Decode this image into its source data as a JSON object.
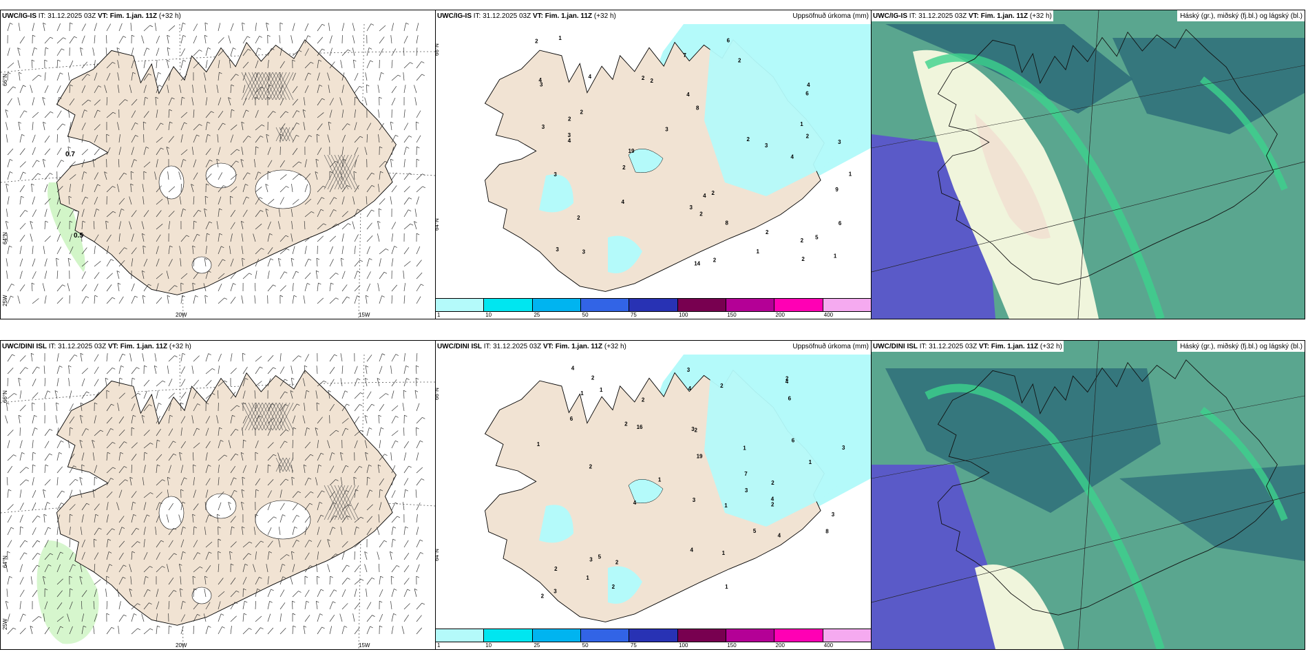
{
  "panels_row1": {
    "wind": {
      "model": "UWC/IG-IS",
      "it_label": "IT:",
      "it_value": "31.12.2025 03Z",
      "vt_label": "VT:",
      "vt_value": "Fim. 1.jan. 11Z",
      "lead": "(+32 h)"
    },
    "precip": {
      "model": "UWC/IG-IS",
      "it_label": "IT:",
      "it_value": "31.12.2025 03Z",
      "vt_label": "VT:",
      "vt_value": "Fim. 1.jan. 11Z",
      "lead": "(+32 h)",
      "title_right": "Uppsöfnuð úrkoma (mm)"
    },
    "cloud": {
      "model": "UWC/IG-IS",
      "it_label": "IT:",
      "it_value": "31.12.2025 03Z",
      "vt_label": "VT:",
      "vt_value": "Fim. 1.jan. 11Z",
      "lead": "(+32 h)",
      "title_right": "Háský (gr.), miðský (fj.bl.) og lágský (bl.)"
    }
  },
  "panels_row2": {
    "wind": {
      "model": "UWC/DINI ISL",
      "it_label": "IT:",
      "it_value": "31.12.2025 03Z",
      "vt_label": "VT:",
      "vt_value": "Fim. 1.jan. 11Z",
      "lead": "(+32 h)"
    },
    "precip": {
      "model": "UWC/DINI ISL",
      "it_label": "IT:",
      "it_value": "31.12.2025 03Z",
      "vt_label": "VT:",
      "vt_value": "Fim. 1.jan. 11Z",
      "lead": "(+32 h)",
      "title_right": "Uppsöfnuð úrkoma (mm)"
    },
    "cloud": {
      "model": "UWC/DINI ISL",
      "it_label": "IT:",
      "it_value": "31.12.2025 03Z",
      "vt_label": "VT:",
      "vt_value": "Fim. 1.jan. 11Z",
      "lead": "(+32 h)",
      "title_right": "Háský (gr.), miðský (fj.bl.) og lágský (bl.)"
    }
  },
  "map_labels": {
    "lat_66": "66°N",
    "lat_64": "64°N",
    "lon_25": "25W",
    "lon_20": "20W",
    "lon_15": "15W"
  },
  "wind_annotations": {
    "row1_a": "0.7",
    "row1_b": "0.5"
  },
  "colorbar": {
    "colors": [
      "#b4fafa",
      "#00e6f0",
      "#00b4f0",
      "#3264e6",
      "#2832b4",
      "#780050",
      "#b40096",
      "#ff00b4",
      "#f5aaf0"
    ],
    "ticks": [
      "1",
      "10",
      "25",
      "50",
      "75",
      "100",
      "150",
      "200",
      "400"
    ]
  },
  "precip_values_row1": [
    "3",
    "2",
    "2",
    "2",
    "2",
    "2",
    "2",
    "4",
    "3",
    "4",
    "8",
    "9",
    "2",
    "7",
    "19",
    "14",
    "2",
    "2",
    "3",
    "2",
    "6",
    "4",
    "3",
    "1",
    "2",
    "3",
    "4",
    "6",
    "2",
    "5",
    "2",
    "4",
    "8",
    "2",
    "3",
    "4",
    "6",
    "1",
    "2",
    "3",
    "4",
    "1",
    "1",
    "3",
    "2",
    "4",
    "3",
    "3",
    "1"
  ],
  "precip_values_row2": [
    "1",
    "2",
    "2",
    "3",
    "2",
    "2",
    "4",
    "3",
    "4",
    "3",
    "5",
    "6",
    "7",
    "19",
    "16",
    "2",
    "4",
    "1",
    "2",
    "2",
    "2",
    "4",
    "8",
    "3",
    "4",
    "3",
    "1",
    "5",
    "6",
    "4",
    "2",
    "2",
    "1",
    "2",
    "6",
    "3",
    "1",
    "2",
    "1",
    "3",
    "4",
    "1",
    "3",
    "1",
    "2",
    "1",
    "1"
  ],
  "colors": {
    "land": "#f1e3d3",
    "precip_light": "#b4fafa",
    "cloud_low": "#5aa68f",
    "cloud_dark": "#2f6f7a",
    "cloud_mid": "#5a5ac8",
    "cloud_green": "#3cd28c",
    "cloud_pale": "#f0f5dc"
  }
}
